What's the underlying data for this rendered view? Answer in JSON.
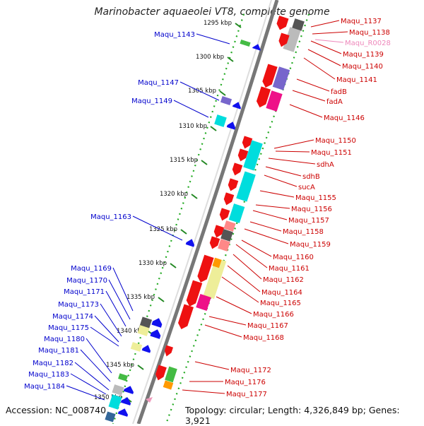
{
  "title": "Marinobacter aquaeolei VT8, complete genome",
  "footer": {
    "accession": "Accession: NC_008740",
    "summary": "Topology: circular; Length: 4,326,849 bp; Genes: 3,921"
  },
  "colors": {
    "left_label": "#0000cc",
    "right_label": "#cc0000",
    "rna_label": "#ee88bb",
    "backbone": "#777777",
    "gc_track": "#22aa22",
    "tick": "#228822"
  },
  "ticks": [
    "1295 kbp",
    "1300 kbp",
    "1305 kbp",
    "1310 kbp",
    "1315 kbp",
    "1320 kbp",
    "1325 kbp",
    "1330 kbp",
    "1335 kbp",
    "1340 kbp",
    "1345 kbp",
    "1350 kbp"
  ],
  "left_labels": [
    "Maqu_1143",
    "Maqu_1147",
    "Maqu_1149",
    "Maqu_1163",
    "Maqu_1169",
    "Maqu_1170",
    "Maqu_1171",
    "Maqu_1173",
    "Maqu_1174",
    "Maqu_1175",
    "Maqu_1180",
    "Maqu_1181",
    "Maqu_1182",
    "Maqu_1183",
    "Maqu_1184"
  ],
  "right_labels": [
    "Maqu_1137",
    "Maqu_1138",
    "Maqu_R0028",
    "Maqu_1139",
    "Maqu_1140",
    "Maqu_1141",
    "fadB",
    "fadA",
    "Maqu_1146",
    "Maqu_1150",
    "Maqu_1151",
    "sdhA",
    "sdhB",
    "sucA",
    "Maqu_1155",
    "Maqu_1156",
    "Maqu_1157",
    "Maqu_1158",
    "Maqu_1159",
    "Maqu_1160",
    "Maqu_1161",
    "Maqu_1162",
    "Maqu_1164",
    "Maqu_1165",
    "Maqu_1166",
    "Maqu_1167",
    "Maqu_1168",
    "Maqu_1172",
    "Maqu_1176",
    "Maqu_1177"
  ],
  "gene_colors": {
    "forward": "#ee1111",
    "reverse": "#1111ee",
    "cyan": "#00dddd",
    "purple": "#7766cc",
    "magenta": "#ee1188",
    "grey": "#bbbbbb",
    "darkgrey": "#555555",
    "green": "#44bb44",
    "orange": "#ff9900",
    "khaki": "#eeee99",
    "pink": "#ee99bb",
    "salmon": "#ff8888"
  }
}
